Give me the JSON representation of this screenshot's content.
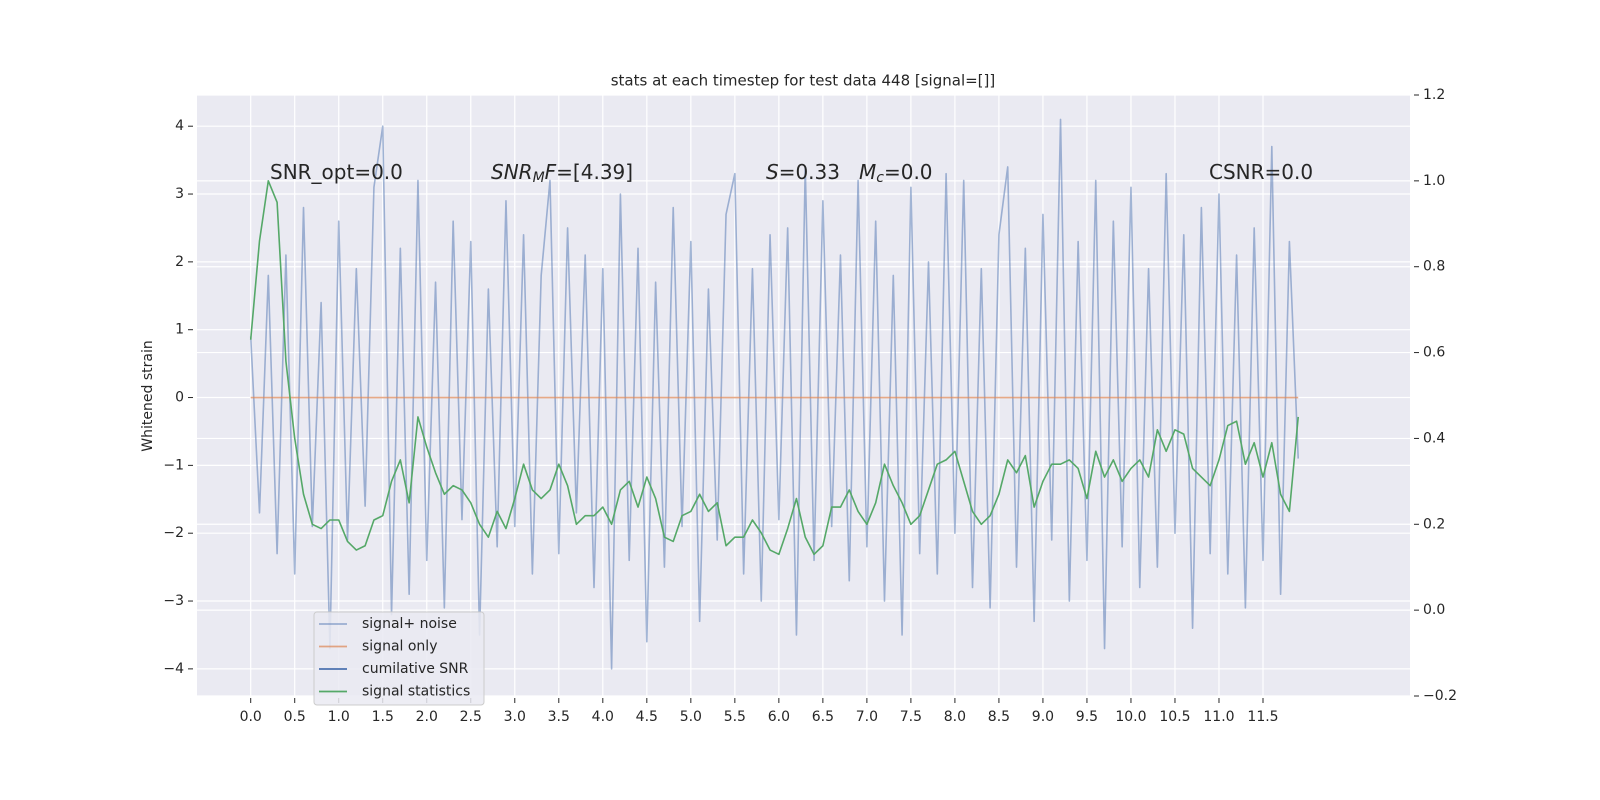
{
  "chart_data": {
    "type": "line",
    "title": "stats at each timestep for test data 448 [signal=[]]",
    "ylabel": "Whitened strain",
    "x": [
      0.0,
      0.1,
      0.2,
      0.3,
      0.4,
      0.5,
      0.6,
      0.7,
      0.8,
      0.9,
      1.0,
      1.1,
      1.2,
      1.3,
      1.4,
      1.5,
      1.6,
      1.7,
      1.8,
      1.9,
      2.0,
      2.1,
      2.2,
      2.3,
      2.4,
      2.5,
      2.6,
      2.7,
      2.8,
      2.9,
      3.0,
      3.1,
      3.2,
      3.3,
      3.4,
      3.5,
      3.6,
      3.7,
      3.8,
      3.9,
      4.0,
      4.1,
      4.2,
      4.3,
      4.4,
      4.5,
      4.6,
      4.7,
      4.8,
      4.9,
      5.0,
      5.1,
      5.2,
      5.3,
      5.4,
      5.5,
      5.6,
      5.7,
      5.8,
      5.9,
      6.0,
      6.1,
      6.2,
      6.3,
      6.4,
      6.5,
      6.6,
      6.7,
      6.8,
      6.9,
      7.0,
      7.1,
      7.2,
      7.3,
      7.4,
      7.5,
      7.6,
      7.7,
      7.8,
      7.9,
      8.0,
      8.1,
      8.2,
      8.3,
      8.4,
      8.5,
      8.6,
      8.7,
      8.8,
      8.9,
      9.0,
      9.1,
      9.2,
      9.3,
      9.4,
      9.5,
      9.6,
      9.7,
      9.8,
      9.9,
      10.0,
      10.1,
      10.2,
      10.3,
      10.4,
      10.5,
      10.6,
      10.7,
      10.8,
      10.9,
      11.0,
      11.1,
      11.2,
      11.3,
      11.4,
      11.5,
      11.6,
      11.7,
      11.8,
      11.9
    ],
    "series": [
      {
        "name": "signal+ noise",
        "color": "#4c72b0",
        "alpha": 0.5,
        "values": [
          0.9,
          -1.7,
          1.8,
          -2.3,
          2.1,
          -2.6,
          2.8,
          -1.9,
          1.4,
          -3.7,
          2.6,
          -2.1,
          1.9,
          -1.6,
          3.1,
          4.0,
          -3.2,
          2.2,
          -2.9,
          3.2,
          -2.4,
          1.7,
          -3.1,
          2.6,
          -1.8,
          2.3,
          -3.5,
          1.6,
          -2.2,
          2.9,
          -1.9,
          2.4,
          -2.6,
          1.8,
          3.2,
          -2.3,
          2.5,
          -1.7,
          2.1,
          -2.8,
          1.9,
          -4.0,
          3.0,
          -2.4,
          2.2,
          -3.6,
          1.7,
          -2.5,
          2.8,
          -1.9,
          2.3,
          -3.3,
          1.6,
          -2.1,
          2.7,
          3.3,
          -2.6,
          1.9,
          -3.0,
          2.4,
          -1.8,
          2.5,
          -3.5,
          3.4,
          -2.4,
          2.9,
          -1.9,
          2.1,
          -2.7,
          3.2,
          -2.2,
          2.6,
          -3.0,
          1.8,
          -3.5,
          3.1,
          -2.3,
          2.0,
          -2.6,
          3.3,
          -2.0,
          3.2,
          -2.8,
          1.9,
          -3.1,
          2.4,
          3.4,
          -2.5,
          2.2,
          -3.3,
          2.7,
          -2.1,
          4.1,
          -3.0,
          2.3,
          -2.4,
          3.2,
          -3.7,
          2.6,
          -2.2,
          3.1,
          -2.8,
          1.9,
          -2.5,
          3.3,
          -2.0,
          2.4,
          -3.4,
          2.8,
          -2.3,
          3.0,
          -2.6,
          2.1,
          -3.1,
          2.5,
          -2.4,
          3.7,
          -2.9,
          2.3,
          -0.9
        ]
      },
      {
        "name": "signal only",
        "color": "#dd8452",
        "alpha": 0.7,
        "values": [
          0,
          0,
          0,
          0,
          0,
          0,
          0,
          0,
          0,
          0,
          0,
          0,
          0,
          0,
          0,
          0,
          0,
          0,
          0,
          0,
          0,
          0,
          0,
          0,
          0,
          0,
          0,
          0,
          0,
          0,
          0,
          0,
          0,
          0,
          0,
          0,
          0,
          0,
          0,
          0,
          0,
          0,
          0,
          0,
          0,
          0,
          0,
          0,
          0,
          0,
          0,
          0,
          0,
          0,
          0,
          0,
          0,
          0,
          0,
          0,
          0,
          0,
          0,
          0,
          0,
          0,
          0,
          0,
          0,
          0,
          0,
          0,
          0,
          0,
          0,
          0,
          0,
          0,
          0,
          0,
          0,
          0,
          0,
          0,
          0,
          0,
          0,
          0,
          0,
          0,
          0,
          0,
          0,
          0,
          0,
          0,
          0,
          0,
          0,
          0,
          0,
          0,
          0,
          0,
          0,
          0,
          0,
          0,
          0,
          0,
          0,
          0,
          0,
          0,
          0,
          0,
          0,
          0,
          0,
          0
        ]
      },
      {
        "name": "cumilative SNR",
        "color": "#4c72b0",
        "alpha": 1,
        "axis": "y2",
        "values": [
          null,
          null,
          null,
          null,
          null,
          null,
          null,
          null,
          null,
          null,
          null,
          null,
          null,
          null,
          null,
          null,
          null,
          null,
          null,
          null,
          null,
          null,
          null,
          null,
          null,
          null,
          null,
          null,
          null,
          null,
          null,
          null,
          null,
          null,
          null,
          null,
          null,
          null,
          null,
          null,
          null,
          null,
          null,
          null,
          null,
          null,
          null,
          null,
          null,
          null,
          null,
          null,
          null,
          null,
          null,
          null,
          null,
          null,
          null,
          null,
          null,
          null,
          null,
          null,
          null,
          null,
          null,
          null,
          null,
          null,
          null,
          null,
          null,
          null,
          null,
          null,
          null,
          null,
          null,
          null,
          null,
          null,
          null,
          null,
          null,
          null,
          null,
          null,
          null,
          null,
          null,
          null,
          null,
          null,
          null,
          null,
          null,
          null,
          null,
          null,
          null,
          null,
          null,
          null,
          null,
          null,
          null,
          null,
          null,
          null,
          null,
          null,
          null,
          null,
          null,
          null,
          null,
          null,
          null,
          null
        ]
      },
      {
        "name": "signal statistics",
        "color": "#55a868",
        "alpha": 1,
        "axis": "y2",
        "values": [
          0.63,
          0.86,
          1.0,
          0.95,
          0.58,
          0.4,
          0.27,
          0.2,
          0.19,
          0.21,
          0.21,
          0.16,
          0.14,
          0.15,
          0.21,
          0.22,
          0.3,
          0.35,
          0.25,
          0.45,
          0.38,
          0.32,
          0.27,
          0.29,
          0.28,
          0.25,
          0.2,
          0.17,
          0.23,
          0.19,
          0.26,
          0.34,
          0.28,
          0.26,
          0.28,
          0.34,
          0.29,
          0.2,
          0.22,
          0.22,
          0.24,
          0.2,
          0.28,
          0.3,
          0.24,
          0.31,
          0.26,
          0.17,
          0.16,
          0.22,
          0.23,
          0.27,
          0.23,
          0.25,
          0.15,
          0.17,
          0.17,
          0.21,
          0.18,
          0.14,
          0.13,
          0.19,
          0.26,
          0.17,
          0.13,
          0.15,
          0.24,
          0.24,
          0.28,
          0.23,
          0.2,
          0.25,
          0.34,
          0.29,
          0.25,
          0.2,
          0.22,
          0.28,
          0.34,
          0.35,
          0.37,
          0.3,
          0.23,
          0.2,
          0.22,
          0.27,
          0.35,
          0.32,
          0.36,
          0.24,
          0.3,
          0.34,
          0.34,
          0.35,
          0.33,
          0.26,
          0.37,
          0.31,
          0.35,
          0.3,
          0.33,
          0.35,
          0.31,
          0.42,
          0.37,
          0.42,
          0.41,
          0.33,
          0.31,
          0.29,
          0.35,
          0.43,
          0.44,
          0.34,
          0.39,
          0.31,
          0.39,
          0.27,
          0.23,
          0.45
        ]
      }
    ],
    "xlim": [
      -0.61,
      13.17
    ],
    "xticks": [
      {
        "value": 0,
        "label": "0.0"
      },
      0.5,
      {
        "value": 1,
        "label": "1.0"
      },
      1.5,
      {
        "value": 2,
        "label": "2.0"
      },
      2.5,
      {
        "value": 3,
        "label": "3.0"
      },
      3.5,
      {
        "value": 4,
        "label": "4.0"
      },
      4.5,
      {
        "value": 5,
        "label": "5.0"
      },
      5.5,
      {
        "value": 6,
        "label": "6.0"
      },
      6.5,
      {
        "value": 7,
        "label": "7.0"
      },
      7.5,
      {
        "value": 8,
        "label": "8.0"
      },
      8.5,
      {
        "value": 9,
        "label": "9.0"
      },
      9.5,
      {
        "value": 10,
        "label": "10.0"
      },
      10.5,
      {
        "value": 11,
        "label": "11.0"
      },
      11.5
    ],
    "ylim": [
      -4.4,
      4.46
    ],
    "yticks": [
      {
        "value": -4,
        "label": "−4"
      },
      {
        "value": -3,
        "label": "−3"
      },
      {
        "value": -2,
        "label": "−2"
      },
      {
        "value": -1,
        "label": "−1"
      },
      0,
      1,
      2,
      3,
      4
    ],
    "y2lim": [
      -0.2,
      1.2
    ],
    "y2ticks": [
      {
        "value": -0.2,
        "label": "−0.2"
      },
      {
        "value": 0,
        "label": "0.0"
      },
      0.2,
      0.4,
      0.6,
      0.8,
      {
        "value": 1,
        "label": "1.0"
      },
      1.2
    ],
    "grid": true,
    "legend": "lower left",
    "annotations": [
      [
        {
          "text": "SNR_opt=0.0"
        }
      ],
      [
        {
          "text": "SNR",
          "italic": true
        },
        {
          "text": "M",
          "italic": true,
          "sub": true
        },
        {
          "text": "F",
          "italic": true
        },
        {
          "text": "=[4.39]"
        }
      ],
      [
        {
          "text": "S",
          "italic": true
        },
        {
          "text": "=0.33"
        }
      ],
      [
        {
          "text": "M",
          "italic": true
        },
        {
          "text": "c",
          "italic": true,
          "sub": true
        },
        {
          "text": "=0.0"
        }
      ],
      [
        {
          "text": "CSNR=0.0"
        }
      ]
    ]
  }
}
